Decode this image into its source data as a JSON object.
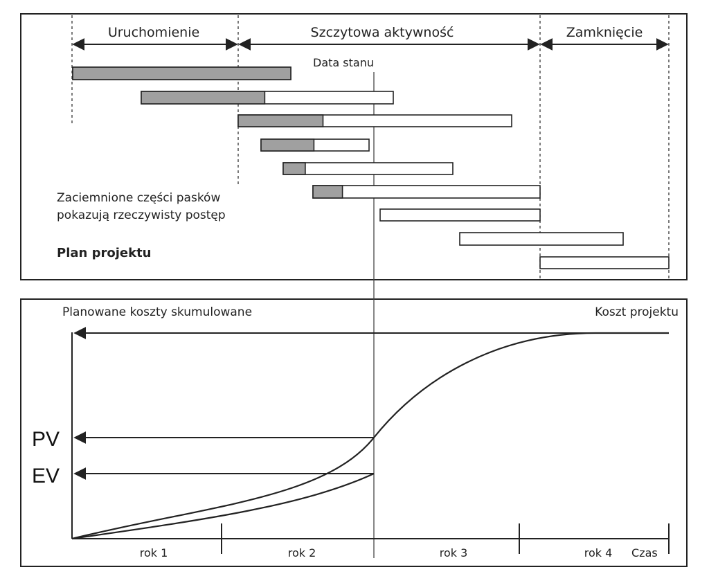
{
  "phases": {
    "startup": "Uruchomienie",
    "peak": "Szczytowa aktywność",
    "closing": "Zamknięcie"
  },
  "status_date": "Data stanu",
  "note_line1": "Zaciemnione części pasków",
  "note_line2": "pokazują rzeczywisty postęp",
  "plan_label": "Plan projektu",
  "cumulative_label": "Planowane koszty skumulowane",
  "project_cost_label": "Koszt projektu",
  "pv_label": "PV",
  "ev_label": "EV",
  "years": [
    "rok 1",
    "rok 2",
    "rok 3",
    "rok 4"
  ],
  "time_label": "Czas",
  "colors": {
    "progress_fill": "#a0a0a0",
    "line": "#222222"
  },
  "tasks": [
    {
      "progress": 1.0
    },
    {
      "progress": 0.49
    },
    {
      "progress": 0.31
    },
    {
      "progress": 0.49
    },
    {
      "progress": 0.13
    },
    {
      "progress": 0.13
    },
    {
      "progress": 0.0
    },
    {
      "progress": 0.0
    },
    {
      "progress": 0.0
    }
  ]
}
